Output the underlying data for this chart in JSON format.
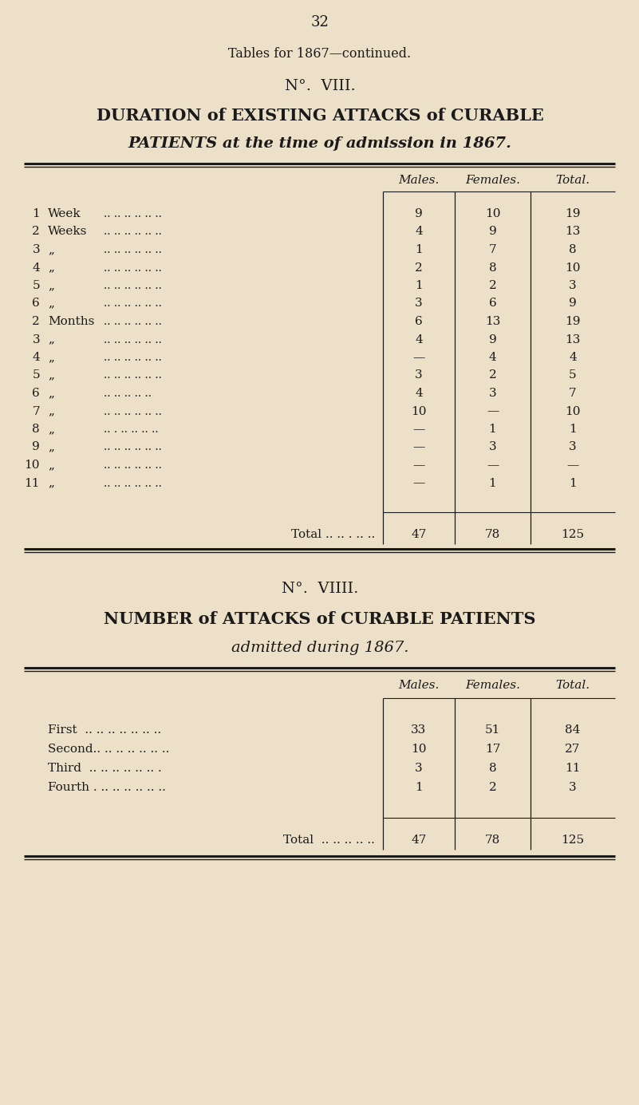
{
  "bg_color": "#ede0c8",
  "text_color": "#1a1a1a",
  "page_number": "32",
  "subtitle": "Tables for 1867—continued.",
  "table1": {
    "no_label": "N°.  VIII.",
    "title_line2": "DURATION of EXISTING ATTACKS of CURABLE",
    "title_line3": "PATIENTS at the time of admission in 1867.",
    "col_headers": [
      "Males.",
      "Females.",
      "Total."
    ],
    "rows": [
      {
        "label1": "1",
        "label2": "Week",
        "dots": ".. .. .. .. .. ..",
        "males": "9",
        "females": "10",
        "total": "19"
      },
      {
        "label1": "2",
        "label2": "Weeks",
        "dots": ".. .. .. .. .. ..",
        "males": "4",
        "females": "9",
        "total": "13"
      },
      {
        "label1": "3",
        "label2": "„",
        "dots": ".. .. .. .. .. ..",
        "males": "1",
        "females": "7",
        "total": "8"
      },
      {
        "label1": "4",
        "label2": "„",
        "dots": ".. .. .. .. .. ..",
        "males": "2",
        "females": "8",
        "total": "10"
      },
      {
        "label1": "5",
        "label2": "„",
        "dots": ".. .. .. .. .. ..",
        "males": "1",
        "females": "2",
        "total": "3"
      },
      {
        "label1": "6",
        "label2": "„",
        "dots": ".. .. .. .. .. ..",
        "males": "3",
        "females": "6",
        "total": "9"
      },
      {
        "label1": "2",
        "label2": "Months",
        "dots": ".. .. .. .. .. ..",
        "males": "6",
        "females": "13",
        "total": "19"
      },
      {
        "label1": "3",
        "label2": "„",
        "dots": ".. .. .. .. .. ..",
        "males": "4",
        "females": "9",
        "total": "13"
      },
      {
        "label1": "4",
        "label2": "„",
        "dots": ".. .. .. .. .. ..",
        "males": "—",
        "females": "4",
        "total": "4"
      },
      {
        "label1": "5",
        "label2": "„",
        "dots": ".. .. .. .. .. ..",
        "males": "3",
        "females": "2",
        "total": "5"
      },
      {
        "label1": "6",
        "label2": "„",
        "dots": ".. .. .. .. ..",
        "males": "4",
        "females": "3",
        "total": "7"
      },
      {
        "label1": "7",
        "label2": "„",
        "dots": ".. .. .. .. .. ..",
        "males": "10",
        "females": "—",
        "total": "10"
      },
      {
        "label1": "8",
        "label2": "„",
        "dots": ".. . .. .. .. ..",
        "males": "—",
        "females": "1",
        "total": "1"
      },
      {
        "label1": "9",
        "label2": "„",
        "dots": ".. .. .. .. .. ..",
        "males": "—",
        "females": "3",
        "total": "3"
      },
      {
        "label1": "10",
        "label2": "„",
        "dots": ".. .. .. .. .. ..",
        "males": "—",
        "females": "—",
        "total": "—"
      },
      {
        "label1": "11",
        "label2": "„",
        "dots": ".. .. .. .. .. ..",
        "males": "—",
        "females": "1",
        "total": "1"
      }
    ],
    "total_label": "Total .. .. . .. ..",
    "total_males": "47",
    "total_females": "78",
    "total_total": "125"
  },
  "table2": {
    "no_label": "N°.  VIIII.",
    "title_line2": "NUMBER of ATTACKS of CURABLE PATIENTS",
    "title_line3": "admitted during 1867.",
    "col_headers": [
      "Males.",
      "Females.",
      "Total."
    ],
    "rows": [
      {
        "label": "First  .. .. .. .. .. .. ..",
        "males": "33",
        "females": "51",
        "total": "84"
      },
      {
        "label": "Second.. .. .. .. .. .. ..",
        "males": "10",
        "females": "17",
        "total": "27"
      },
      {
        "label": "Third  .. .. .. .. .. .. .",
        "males": "3",
        "females": "8",
        "total": "11"
      },
      {
        "label": "Fourth . .. .. .. .. .. ..",
        "males": "1",
        "females": "2",
        "total": "3"
      }
    ],
    "total_label": "Total  .. .. .. .. ..",
    "total_males": "47",
    "total_females": "78",
    "total_total": "125"
  }
}
